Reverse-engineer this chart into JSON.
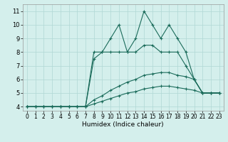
{
  "xlabel": "Humidex (Indice chaleur)",
  "bg_color": "#d4efec",
  "grid_color": "#b0d8d4",
  "line_color": "#1a6b5a",
  "xlim": [
    -0.5,
    23.5
  ],
  "ylim": [
    3.7,
    11.5
  ],
  "yticks": [
    4,
    5,
    6,
    7,
    8,
    9,
    10,
    11
  ],
  "xticks": [
    0,
    1,
    2,
    3,
    4,
    5,
    6,
    7,
    8,
    9,
    10,
    11,
    12,
    13,
    14,
    15,
    16,
    17,
    18,
    19,
    20,
    21,
    22,
    23
  ],
  "series": [
    [
      4.0,
      4.0,
      4.0,
      4.0,
      4.0,
      4.0,
      4.0,
      4.0,
      8.0,
      8.0,
      9.0,
      10.0,
      8.0,
      9.0,
      11.0,
      10.0,
      9.0,
      10.0,
      9.0,
      8.0,
      6.0,
      5.0,
      5.0,
      5.0
    ],
    [
      4.0,
      4.0,
      4.0,
      4.0,
      4.0,
      4.0,
      4.0,
      4.0,
      7.5,
      8.0,
      8.0,
      8.0,
      8.0,
      8.0,
      8.5,
      8.5,
      8.0,
      8.0,
      8.0,
      7.0,
      6.0,
      5.0,
      5.0,
      5.0
    ],
    [
      4.0,
      4.0,
      4.0,
      4.0,
      4.0,
      4.0,
      4.0,
      4.0,
      4.5,
      4.8,
      5.2,
      5.5,
      5.8,
      6.0,
      6.3,
      6.4,
      6.5,
      6.5,
      6.3,
      6.2,
      6.0,
      5.0,
      5.0,
      5.0
    ],
    [
      4.0,
      4.0,
      4.0,
      4.0,
      4.0,
      4.0,
      4.0,
      4.0,
      4.2,
      4.4,
      4.6,
      4.8,
      5.0,
      5.1,
      5.3,
      5.4,
      5.5,
      5.5,
      5.4,
      5.3,
      5.2,
      5.0,
      5.0,
      5.0
    ]
  ]
}
